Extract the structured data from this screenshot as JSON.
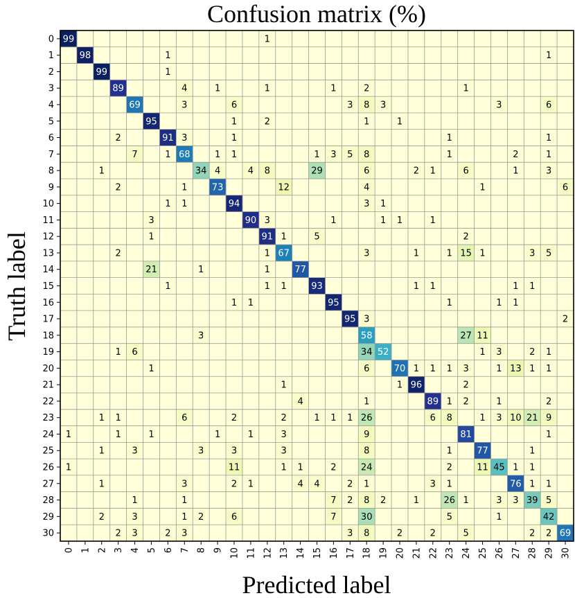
{
  "chart_data": {
    "type": "heatmap",
    "title": "Confusion matrix (%)",
    "xlabel": "Predicted label",
    "ylabel": "Truth label",
    "x_categories": [
      "0",
      "1",
      "2",
      "3",
      "4",
      "5",
      "6",
      "7",
      "8",
      "9",
      "10",
      "11",
      "12",
      "13",
      "14",
      "15",
      "16",
      "17",
      "18",
      "19",
      "20",
      "21",
      "22",
      "23",
      "24",
      "25",
      "26",
      "27",
      "28",
      "29",
      "30"
    ],
    "y_categories": [
      "0",
      "1",
      "2",
      "3",
      "4",
      "5",
      "6",
      "7",
      "8",
      "9",
      "10",
      "11",
      "12",
      "13",
      "14",
      "15",
      "16",
      "17",
      "18",
      "19",
      "20",
      "21",
      "22",
      "23",
      "24",
      "25",
      "26",
      "27",
      "28",
      "29",
      "30"
    ],
    "value_range": [
      0,
      100
    ],
    "colormap": "YlGnBu",
    "grid": true,
    "cells": [
      [
        0,
        0,
        99
      ],
      [
        0,
        12,
        1
      ],
      [
        1,
        1,
        98
      ],
      [
        1,
        6,
        1
      ],
      [
        1,
        29,
        1
      ],
      [
        2,
        2,
        99
      ],
      [
        2,
        6,
        1
      ],
      [
        3,
        3,
        89
      ],
      [
        3,
        7,
        4
      ],
      [
        3,
        9,
        1
      ],
      [
        3,
        12,
        1
      ],
      [
        3,
        16,
        1
      ],
      [
        3,
        18,
        2
      ],
      [
        3,
        24,
        1
      ],
      [
        4,
        4,
        69
      ],
      [
        4,
        7,
        3
      ],
      [
        4,
        10,
        6
      ],
      [
        4,
        17,
        3
      ],
      [
        4,
        18,
        8
      ],
      [
        4,
        19,
        3
      ],
      [
        4,
        26,
        3
      ],
      [
        4,
        29,
        6
      ],
      [
        5,
        5,
        95
      ],
      [
        5,
        10,
        1
      ],
      [
        5,
        12,
        2
      ],
      [
        5,
        18,
        1
      ],
      [
        5,
        20,
        1
      ],
      [
        6,
        3,
        2
      ],
      [
        6,
        6,
        91
      ],
      [
        6,
        7,
        3
      ],
      [
        6,
        10,
        1
      ],
      [
        6,
        23,
        1
      ],
      [
        6,
        29,
        1
      ],
      [
        7,
        4,
        7
      ],
      [
        7,
        6,
        1
      ],
      [
        7,
        7,
        68
      ],
      [
        7,
        9,
        1
      ],
      [
        7,
        10,
        1
      ],
      [
        7,
        15,
        1
      ],
      [
        7,
        16,
        3
      ],
      [
        7,
        17,
        5
      ],
      [
        7,
        18,
        8
      ],
      [
        7,
        23,
        1
      ],
      [
        7,
        27,
        2
      ],
      [
        7,
        29,
        1
      ],
      [
        8,
        2,
        1
      ],
      [
        8,
        8,
        34
      ],
      [
        8,
        9,
        4
      ],
      [
        8,
        11,
        4
      ],
      [
        8,
        12,
        8
      ],
      [
        8,
        15,
        29
      ],
      [
        8,
        18,
        6
      ],
      [
        8,
        21,
        2
      ],
      [
        8,
        22,
        1
      ],
      [
        8,
        24,
        6
      ],
      [
        8,
        27,
        1
      ],
      [
        8,
        29,
        3
      ],
      [
        9,
        3,
        2
      ],
      [
        9,
        7,
        1
      ],
      [
        9,
        9,
        73
      ],
      [
        9,
        13,
        12
      ],
      [
        9,
        18,
        4
      ],
      [
        9,
        25,
        1
      ],
      [
        9,
        30,
        6
      ],
      [
        10,
        6,
        1
      ],
      [
        10,
        7,
        1
      ],
      [
        10,
        10,
        94
      ],
      [
        10,
        18,
        3
      ],
      [
        10,
        19,
        1
      ],
      [
        11,
        5,
        3
      ],
      [
        11,
        11,
        90
      ],
      [
        11,
        12,
        3
      ],
      [
        11,
        16,
        1
      ],
      [
        11,
        19,
        1
      ],
      [
        11,
        20,
        1
      ],
      [
        11,
        22,
        1
      ],
      [
        12,
        5,
        1
      ],
      [
        12,
        12,
        91
      ],
      [
        12,
        13,
        1
      ],
      [
        12,
        15,
        5
      ],
      [
        12,
        24,
        2
      ],
      [
        13,
        3,
        2
      ],
      [
        13,
        12,
        1
      ],
      [
        13,
        13,
        67
      ],
      [
        13,
        18,
        3
      ],
      [
        13,
        21,
        1
      ],
      [
        13,
        23,
        1
      ],
      [
        13,
        24,
        15
      ],
      [
        13,
        25,
        1
      ],
      [
        13,
        28,
        3
      ],
      [
        13,
        29,
        5
      ],
      [
        14,
        5,
        21
      ],
      [
        14,
        8,
        1
      ],
      [
        14,
        12,
        1
      ],
      [
        14,
        14,
        77
      ],
      [
        15,
        6,
        1
      ],
      [
        15,
        12,
        1
      ],
      [
        15,
        13,
        1
      ],
      [
        15,
        15,
        93
      ],
      [
        15,
        21,
        1
      ],
      [
        15,
        22,
        1
      ],
      [
        15,
        27,
        1
      ],
      [
        15,
        28,
        1
      ],
      [
        16,
        10,
        1
      ],
      [
        16,
        11,
        1
      ],
      [
        16,
        16,
        95
      ],
      [
        16,
        23,
        1
      ],
      [
        16,
        26,
        1
      ],
      [
        16,
        27,
        1
      ],
      [
        17,
        17,
        95
      ],
      [
        17,
        18,
        3
      ],
      [
        17,
        30,
        2
      ],
      [
        18,
        8,
        3
      ],
      [
        18,
        18,
        58
      ],
      [
        18,
        24,
        27
      ],
      [
        18,
        25,
        11
      ],
      [
        19,
        3,
        1
      ],
      [
        19,
        4,
        6
      ],
      [
        19,
        18,
        34
      ],
      [
        19,
        19,
        52
      ],
      [
        19,
        25,
        1
      ],
      [
        19,
        26,
        3
      ],
      [
        19,
        28,
        2
      ],
      [
        19,
        29,
        1
      ],
      [
        20,
        5,
        1
      ],
      [
        20,
        18,
        6
      ],
      [
        20,
        20,
        70
      ],
      [
        20,
        21,
        1
      ],
      [
        20,
        22,
        1
      ],
      [
        20,
        23,
        1
      ],
      [
        20,
        24,
        3
      ],
      [
        20,
        26,
        1
      ],
      [
        20,
        27,
        13
      ],
      [
        20,
        28,
        1
      ],
      [
        20,
        29,
        1
      ],
      [
        21,
        13,
        1
      ],
      [
        21,
        20,
        1
      ],
      [
        21,
        21,
        96
      ],
      [
        21,
        24,
        2
      ],
      [
        22,
        14,
        4
      ],
      [
        22,
        18,
        1
      ],
      [
        22,
        22,
        89
      ],
      [
        22,
        23,
        1
      ],
      [
        22,
        24,
        2
      ],
      [
        22,
        26,
        1
      ],
      [
        22,
        29,
        2
      ],
      [
        23,
        2,
        1
      ],
      [
        23,
        3,
        1
      ],
      [
        23,
        7,
        6
      ],
      [
        23,
        10,
        2
      ],
      [
        23,
        13,
        2
      ],
      [
        23,
        15,
        1
      ],
      [
        23,
        16,
        1
      ],
      [
        23,
        17,
        1
      ],
      [
        23,
        18,
        26
      ],
      [
        23,
        22,
        6
      ],
      [
        23,
        23,
        8
      ],
      [
        23,
        25,
        1
      ],
      [
        23,
        26,
        3
      ],
      [
        23,
        27,
        10
      ],
      [
        23,
        28,
        21
      ],
      [
        23,
        29,
        9
      ],
      [
        24,
        0,
        1
      ],
      [
        24,
        3,
        1
      ],
      [
        24,
        5,
        1
      ],
      [
        24,
        9,
        1
      ],
      [
        24,
        11,
        1
      ],
      [
        24,
        13,
        3
      ],
      [
        24,
        18,
        9
      ],
      [
        24,
        24,
        81
      ],
      [
        24,
        29,
        1
      ],
      [
        25,
        2,
        1
      ],
      [
        25,
        4,
        3
      ],
      [
        25,
        8,
        3
      ],
      [
        25,
        10,
        3
      ],
      [
        25,
        13,
        3
      ],
      [
        25,
        18,
        8
      ],
      [
        25,
        23,
        1
      ],
      [
        25,
        25,
        77
      ],
      [
        25,
        28,
        1
      ],
      [
        26,
        0,
        1
      ],
      [
        26,
        10,
        11
      ],
      [
        26,
        13,
        1
      ],
      [
        26,
        14,
        1
      ],
      [
        26,
        16,
        2
      ],
      [
        26,
        18,
        24
      ],
      [
        26,
        23,
        2
      ],
      [
        26,
        25,
        11
      ],
      [
        26,
        26,
        45
      ],
      [
        26,
        27,
        1
      ],
      [
        26,
        28,
        1
      ],
      [
        27,
        2,
        1
      ],
      [
        27,
        7,
        3
      ],
      [
        27,
        10,
        2
      ],
      [
        27,
        11,
        1
      ],
      [
        27,
        14,
        4
      ],
      [
        27,
        15,
        4
      ],
      [
        27,
        17,
        2
      ],
      [
        27,
        18,
        1
      ],
      [
        27,
        22,
        3
      ],
      [
        27,
        23,
        1
      ],
      [
        27,
        27,
        76
      ],
      [
        27,
        28,
        1
      ],
      [
        27,
        29,
        1
      ],
      [
        28,
        4,
        1
      ],
      [
        28,
        7,
        1
      ],
      [
        28,
        16,
        7
      ],
      [
        28,
        17,
        2
      ],
      [
        28,
        18,
        8
      ],
      [
        28,
        19,
        2
      ],
      [
        28,
        21,
        1
      ],
      [
        28,
        23,
        26
      ],
      [
        28,
        24,
        1
      ],
      [
        28,
        26,
        3
      ],
      [
        28,
        27,
        3
      ],
      [
        28,
        28,
        39
      ],
      [
        28,
        29,
        5
      ],
      [
        29,
        2,
        2
      ],
      [
        29,
        4,
        3
      ],
      [
        29,
        7,
        1
      ],
      [
        29,
        8,
        2
      ],
      [
        29,
        10,
        6
      ],
      [
        29,
        16,
        7
      ],
      [
        29,
        18,
        30
      ],
      [
        29,
        23,
        5
      ],
      [
        29,
        26,
        1
      ],
      [
        29,
        29,
        42
      ],
      [
        30,
        3,
        2
      ],
      [
        30,
        4,
        3
      ],
      [
        30,
        6,
        2
      ],
      [
        30,
        7,
        3
      ],
      [
        30,
        17,
        3
      ],
      [
        30,
        18,
        8
      ],
      [
        30,
        20,
        2
      ],
      [
        30,
        22,
        2
      ],
      [
        30,
        24,
        5
      ],
      [
        30,
        28,
        2
      ],
      [
        30,
        29,
        2
      ],
      [
        30,
        30,
        69
      ]
    ]
  }
}
